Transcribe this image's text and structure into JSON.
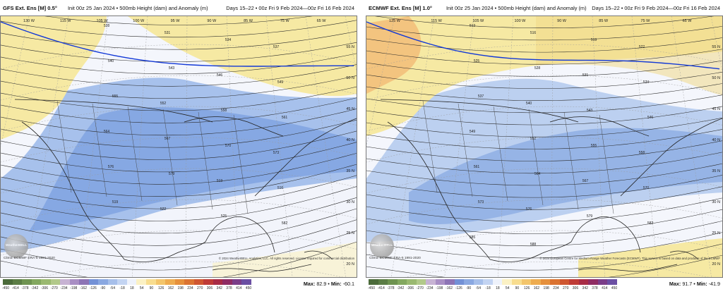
{
  "panels": [
    {
      "id": "gfs",
      "model": "GFS Ext. Ens [M] 0.5°",
      "init": "Init 00z 25 Jan 2024 • 500mb Height (dam) and Anomaly (m)",
      "valid": "Days 15–22 • 00z Fri 9 Feb 2024—00z Fri 16 Feb 2024",
      "climo": "Climo: ECMWF ERA-5 1991-2020",
      "copyright": "© 2024 WeatherBELL Analytics, LLC. All rights reserved. License required for commercial distribution",
      "max_label": "Max:",
      "max": "82.9",
      "min_label": "Min:",
      "min": "-60.1",
      "logo_text": "WeatherBELL",
      "top_lon_labels": [
        "130 W",
        "115 W",
        "105 W",
        "100 W",
        "95 W",
        "90 W",
        "85 W",
        "75 W",
        "65 W"
      ],
      "lat_labels": [
        "55 N",
        "50 N",
        "45 N",
        "40 N",
        "35 N",
        "30 N",
        "25 N",
        "20 N"
      ],
      "contour_labels": [
        "528",
        "531",
        "534",
        "537",
        "540",
        "543",
        "546",
        "549",
        "555",
        "552",
        "558",
        "561",
        "564",
        "567",
        "570",
        "573",
        "576",
        "579",
        "513",
        "516",
        "519",
        "522",
        "525",
        "582"
      ]
    },
    {
      "id": "ecmwf",
      "model": "ECMWF Ext. Ens [M] 1.0°",
      "init": "Init 00z 25 Jan 2024 • 500mb Height (dam) and Anomaly (m)",
      "valid": "Days 15–22 • 00z Fri 9 Feb 2024—00z Fri 16 Feb 2024",
      "climo": "Climo: ECMWF ERA-5 1991-2020",
      "copyright": "© 2024 European Centre for Medium-Range Weather Forecasts (ECMWF). This service is based on data and products of the ECMWF",
      "max_label": "Max:",
      "max": "91.7",
      "min_label": "Min:",
      "min": "-41.9",
      "logo_text": "WeatherBELL",
      "top_lon_labels": [
        "125 W",
        "115 W",
        "105 W",
        "100 W",
        "90 W",
        "85 W",
        "75 W",
        "65 W"
      ],
      "lat_labels": [
        "55 N",
        "50 N",
        "45 N",
        "40 N",
        "35 N",
        "30 N",
        "25 N",
        "20 N"
      ],
      "contour_labels": [
        "513",
        "516",
        "519",
        "522",
        "525",
        "528",
        "531",
        "534",
        "537",
        "540",
        "543",
        "546",
        "549",
        "552",
        "555",
        "558",
        "561",
        "564",
        "567",
        "570",
        "573",
        "576",
        "579",
        "582",
        "585",
        "588"
      ]
    }
  ],
  "colorbar": {
    "labels": [
      "-450",
      "-414",
      "-378",
      "-342",
      "-306",
      "-270",
      "-234",
      "-198",
      "-162",
      "-126",
      "-90",
      "-54",
      "-18",
      "18",
      "54",
      "90",
      "126",
      "162",
      "198",
      "234",
      "270",
      "306",
      "342",
      "378",
      "414",
      "450"
    ],
    "colors": [
      "#4b6b3a",
      "#5b7d45",
      "#6e9350",
      "#83a85f",
      "#9ab970",
      "#b2c98a",
      "#c7b3d3",
      "#a98fc4",
      "#8d74b5",
      "#7391d6",
      "#8aa8e1",
      "#a6bfea",
      "#c3d4f2",
      "#eef2fb",
      "#fbf1c4",
      "#f8dd8f",
      "#f3c56b",
      "#eeac4f",
      "#e6903b",
      "#db7331",
      "#cf5630",
      "#bf3b36",
      "#a82c45",
      "#8f2c63",
      "#7a3d88",
      "#6b4fa3"
    ]
  }
}
